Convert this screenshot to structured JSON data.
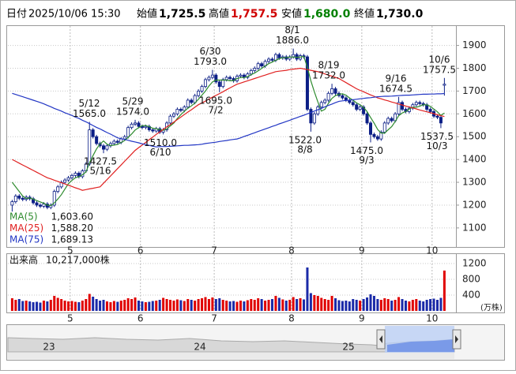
{
  "chart_data": {
    "type": "candlestick",
    "header": {
      "date_label": "日付",
      "date": "2025/10/06 15:30",
      "items": [
        {
          "name": "始値",
          "value": {
            "value": 1725.5,
            "label": "1,725.5"
          }
        },
        {
          "name": "高値",
          "value": {
            "value": 1757.5,
            "label": "1,757.5"
          }
        },
        {
          "name": "安値",
          "value": {
            "value": 1680,
            "label": "1,680.0"
          }
        },
        {
          "name": "終値",
          "value": {
            "value": 1730,
            "label": "1,730.0"
          }
        }
      ]
    },
    "categories": [
      null,
      null,
      null,
      null,
      null,
      null,
      null,
      null,
      null,
      null,
      null,
      null,
      null,
      null,
      null,
      null,
      null,
      "5",
      null,
      null,
      null,
      null,
      null,
      null,
      null,
      null,
      null,
      null,
      null,
      null,
      null,
      null,
      null,
      null,
      null,
      null,
      null,
      "6",
      null,
      null,
      null,
      null,
      null,
      null,
      null,
      null,
      null,
      null,
      null,
      null,
      null,
      null,
      null,
      null,
      null,
      null,
      null,
      null,
      "7",
      null,
      null,
      null,
      null,
      null,
      null,
      null,
      null,
      null,
      null,
      null,
      null,
      null,
      null,
      null,
      null,
      null,
      null,
      null,
      null,
      null,
      "8",
      null,
      null,
      null,
      null,
      null,
      null,
      null,
      null,
      null,
      null,
      null,
      null,
      null,
      null,
      null,
      null,
      null,
      null,
      null,
      "9",
      null,
      null,
      null,
      null,
      null,
      null,
      null,
      null,
      null,
      null,
      null,
      null,
      null,
      null,
      null,
      null,
      null,
      null,
      null,
      "10",
      null,
      null,
      null
    ],
    "open": [
      1200,
      1215,
      1240,
      1230,
      1225,
      1235,
      1228,
      1210,
      1200,
      1195,
      1205,
      1190,
      1200,
      1260,
      1280,
      1300,
      1310,
      1320,
      1330,
      1340,
      1325,
      1350,
      1380,
      1530,
      1500,
      1470,
      1460,
      1445,
      1460,
      1470,
      1480,
      1475,
      1490,
      1500,
      1540,
      1555,
      1560,
      1545,
      1540,
      1545,
      1530,
      1525,
      1535,
      1520,
      1530,
      1560,
      1590,
      1600,
      1620,
      1615,
      1630,
      1660,
      1650,
      1680,
      1700,
      1720,
      1750,
      1760,
      1770,
      1740,
      1720,
      1750,
      1760,
      1755,
      1745,
      1765,
      1770,
      1760,
      1775,
      1790,
      1800,
      1820,
      1810,
      1830,
      1840,
      1835,
      1860,
      1845,
      1850,
      1840,
      1850,
      1860,
      1840,
      1855,
      1850,
      1620,
      1560,
      1600,
      1630,
      1650,
      1660,
      1690,
      1710,
      1690,
      1680,
      1670,
      1660,
      1650,
      1640,
      1620,
      1630,
      1600,
      1560,
      1510,
      1500,
      1490,
      1520,
      1560,
      1580,
      1570,
      1600,
      1650,
      1620,
      1610,
      1625,
      1640,
      1650,
      1645,
      1640,
      1620,
      1610,
      1590,
      1585,
      1725.5
    ],
    "high": [
      1223,
      1248,
      1248,
      1238,
      1243,
      1243,
      1236,
      1218,
      1208,
      1213,
      1213,
      1208,
      1268,
      1288,
      1308,
      1318,
      1328,
      1338,
      1348,
      1348,
      1358,
      1388,
      1565,
      1538,
      1508,
      1478,
      1468,
      1468,
      1478,
      1488,
      1488,
      1498,
      1508,
      1548,
      1563,
      1574,
      1568,
      1553,
      1553,
      1553,
      1538,
      1543,
      1543,
      1538,
      1568,
      1598,
      1608,
      1628,
      1628,
      1638,
      1668,
      1668,
      1688,
      1708,
      1728,
      1758,
      1768,
      1793,
      1778,
      1748,
      1758,
      1768,
      1768,
      1763,
      1773,
      1778,
      1778,
      1783,
      1798,
      1808,
      1828,
      1828,
      1838,
      1848,
      1848,
      1868,
      1868,
      1858,
      1858,
      1858,
      1886,
      1868,
      1863,
      1863,
      1858,
      1628,
      1608,
      1638,
      1658,
      1668,
      1698,
      1732,
      1718,
      1698,
      1688,
      1678,
      1668,
      1658,
      1648,
      1638,
      1638,
      1608,
      1568,
      1518,
      1508,
      1528,
      1568,
      1588,
      1588,
      1608,
      1674.5,
      1658,
      1628,
      1633,
      1648,
      1658,
      1658,
      1653,
      1648,
      1628,
      1618,
      1598,
      1593,
      1757.5
    ],
    "low": [
      1170,
      1207,
      1222,
      1217,
      1217,
      1220,
      1202,
      1192,
      1187,
      1187,
      1182,
      1182,
      1192,
      1252,
      1272,
      1292,
      1302,
      1312,
      1322,
      1317,
      1317,
      1342,
      1372,
      1492,
      1462,
      1452,
      1427.5,
      1437,
      1452,
      1462,
      1467,
      1467,
      1482,
      1492,
      1532,
      1547,
      1537,
      1532,
      1532,
      1522,
      1517,
      1517,
      1512,
      1510,
      1522,
      1552,
      1582,
      1592,
      1607,
      1607,
      1622,
      1642,
      1642,
      1672,
      1692,
      1712,
      1742,
      1752,
      1732,
      1695,
      1712,
      1742,
      1747,
      1737,
      1737,
      1757,
      1752,
      1752,
      1767,
      1782,
      1792,
      1802,
      1802,
      1822,
      1827,
      1827,
      1837,
      1837,
      1832,
      1832,
      1842,
      1832,
      1832,
      1842,
      1612,
      1522,
      1552,
      1592,
      1622,
      1642,
      1652,
      1682,
      1682,
      1672,
      1662,
      1652,
      1642,
      1632,
      1612,
      1612,
      1592,
      1552,
      1475,
      1492,
      1482,
      1482,
      1512,
      1552,
      1562,
      1562,
      1592,
      1612,
      1602,
      1602,
      1617,
      1632,
      1637,
      1632,
      1612,
      1602,
      1582,
      1577,
      1537.5,
      1680
    ],
    "close": [
      1215,
      1240,
      1230,
      1225,
      1235,
      1228,
      1210,
      1200,
      1195,
      1205,
      1190,
      1200,
      1260,
      1280,
      1300,
      1310,
      1320,
      1330,
      1340,
      1325,
      1350,
      1380,
      1530,
      1500,
      1470,
      1460,
      1445,
      1460,
      1470,
      1480,
      1475,
      1490,
      1500,
      1540,
      1555,
      1560,
      1545,
      1540,
      1545,
      1530,
      1525,
      1535,
      1520,
      1530,
      1560,
      1590,
      1600,
      1620,
      1615,
      1630,
      1660,
      1650,
      1680,
      1700,
      1720,
      1750,
      1760,
      1770,
      1740,
      1720,
      1750,
      1760,
      1755,
      1745,
      1765,
      1770,
      1760,
      1775,
      1790,
      1800,
      1820,
      1810,
      1830,
      1840,
      1835,
      1860,
      1845,
      1850,
      1840,
      1850,
      1860,
      1840,
      1855,
      1850,
      1620,
      1560,
      1600,
      1630,
      1650,
      1660,
      1690,
      1710,
      1690,
      1680,
      1670,
      1660,
      1650,
      1640,
      1620,
      1630,
      1600,
      1560,
      1510,
      1500,
      1490,
      1520,
      1560,
      1580,
      1570,
      1600,
      1650,
      1620,
      1610,
      1625,
      1640,
      1650,
      1645,
      1640,
      1620,
      1610,
      1590,
      1585,
      1560,
      1730
    ],
    "up_color": "#ffffff",
    "down_color": "#0c1f86",
    "candle_outline": "#0c1f86",
    "ylim": [
      1020,
      1985
    ],
    "yticks": [
      1100,
      1200,
      1300,
      1400,
      1500,
      1600,
      1700,
      1800,
      1900
    ],
    "grid": true,
    "ma": [
      {
        "name": "MA(5)",
        "color": "#2e8b2e",
        "last": {
          "value": 1603.6,
          "label": "1,603.60"
        },
        "values": [
          1300,
          1280,
          1260,
          1240,
          1229,
          1232,
          1226,
          1220,
          1214,
          1208,
          1200,
          1198,
          1210,
          1227,
          1246,
          1270,
          1294,
          1308,
          1320,
          1325,
          1333,
          1345,
          1385,
          1417,
          1446,
          1468,
          1481,
          1467,
          1461,
          1463,
          1466,
          1475,
          1483,
          1497,
          1512,
          1529,
          1540,
          1548,
          1549,
          1544,
          1537,
          1535,
          1531,
          1528,
          1534,
          1547,
          1560,
          1580,
          1597,
          1611,
          1625,
          1635,
          1647,
          1664,
          1682,
          1700,
          1722,
          1740,
          1748,
          1748,
          1748,
          1748,
          1745,
          1746,
          1755,
          1759,
          1759,
          1763,
          1772,
          1779,
          1789,
          1799,
          1810,
          1820,
          1827,
          1835,
          1842,
          1846,
          1846,
          1849,
          1849,
          1848,
          1849,
          1851,
          1805,
          1745,
          1697,
          1652,
          1612,
          1620,
          1646,
          1668,
          1680,
          1686,
          1688,
          1682,
          1670,
          1660,
          1648,
          1640,
          1628,
          1610,
          1584,
          1560,
          1532,
          1516,
          1516,
          1530,
          1544,
          1566,
          1592,
          1604,
          1610,
          1621,
          1629,
          1629,
          1634,
          1640,
          1639,
          1633,
          1621,
          1609,
          1593,
          1603.6
        ]
      },
      {
        "name": "MA(25)",
        "color": "#e02020",
        "last": {
          "value": 1588.2,
          "label": "1,588.20"
        },
        "values": [
          1400,
          1392,
          1384,
          1376,
          1368,
          1360,
          1352,
          1344,
          1336,
          1328,
          1320,
          1315,
          1309,
          1304,
          1298,
          1293,
          1287,
          1282,
          1276,
          1271,
          1265,
          1268,
          1271,
          1274,
          1277,
          1280,
          1296,
          1312,
          1328,
          1344,
          1360,
          1376,
          1392,
          1408,
          1424,
          1440,
          1452,
          1463,
          1475,
          1487,
          1498,
          1510,
          1521,
          1532,
          1543,
          1553,
          1564,
          1575,
          1586,
          1597,
          1608,
          1618,
          1629,
          1640,
          1648,
          1656,
          1665,
          1673,
          1681,
          1689,
          1697,
          1706,
          1714,
          1722,
          1730,
          1735,
          1740,
          1745,
          1750,
          1755,
          1760,
          1765,
          1770,
          1775,
          1780,
          1785,
          1787,
          1789,
          1791,
          1794,
          1796,
          1798,
          1800,
          1797,
          1794,
          1791,
          1788,
          1785,
          1780,
          1775,
          1770,
          1765,
          1760,
          1755,
          1746,
          1737,
          1728,
          1719,
          1710,
          1703,
          1697,
          1690,
          1683,
          1677,
          1670,
          1666,
          1661,
          1657,
          1652,
          1648,
          1643,
          1639,
          1634,
          1630,
          1626,
          1622,
          1617,
          1613,
          1609,
          1605,
          1601,
          1596,
          1592,
          1588.2
        ]
      },
      {
        "name": "MA(75)",
        "color": "#2236c4",
        "last": {
          "value": 1689.13,
          "label": "1,689.13"
        },
        "values": [
          1690,
          1685,
          1680,
          1675,
          1670,
          1665,
          1660,
          1655,
          1650,
          1644,
          1637,
          1631,
          1624,
          1618,
          1612,
          1605,
          1599,
          1593,
          1586,
          1580,
          1572,
          1565,
          1557,
          1549,
          1541,
          1534,
          1526,
          1518,
          1511,
          1503,
          1495,
          1491,
          1488,
          1484,
          1480,
          1477,
          1473,
          1469,
          1466,
          1462,
          1458,
          1455,
          1456,
          1457,
          1457,
          1458,
          1459,
          1460,
          1461,
          1462,
          1462,
          1463,
          1464,
          1465,
          1467,
          1470,
          1472,
          1474,
          1476,
          1479,
          1481,
          1483,
          1486,
          1488,
          1490,
          1495,
          1501,
          1506,
          1512,
          1517,
          1523,
          1528,
          1534,
          1539,
          1545,
          1550,
          1556,
          1561,
          1567,
          1572,
          1578,
          1583,
          1589,
          1594,
          1600,
          1606,
          1612,
          1618,
          1624,
          1631,
          1637,
          1643,
          1649,
          1655,
          1657,
          1659,
          1660,
          1662,
          1664,
          1666,
          1668,
          1670,
          1671,
          1673,
          1675,
          1676,
          1677,
          1677,
          1678,
          1679,
          1680,
          1681,
          1682,
          1682,
          1683,
          1684,
          1685,
          1686,
          1686,
          1687,
          1687,
          1688,
          1688,
          1689.13
        ]
      }
    ],
    "annotations": [
      {
        "date": "5/12",
        "value": {
          "value": 1565,
          "label": "1565.0"
        }
      },
      {
        "date": "5/16",
        "value": {
          "value": 1427.5,
          "label": "1427.5"
        }
      },
      {
        "date": "5/29",
        "value": {
          "value": 1574,
          "label": "1574.0"
        }
      },
      {
        "date": "6/10",
        "value": {
          "value": 1510,
          "label": "1510.0"
        }
      },
      {
        "date": "6/30",
        "value": {
          "value": 1793,
          "label": "1793.0"
        }
      },
      {
        "date": "7/2",
        "value": {
          "value": 1695,
          "label": "1695.0"
        }
      },
      {
        "date": "8/1",
        "value": {
          "value": 1886,
          "label": "1886.0"
        }
      },
      {
        "date": "8/8",
        "value": {
          "value": 1522,
          "label": "1522.0"
        }
      },
      {
        "date": "8/19",
        "value": {
          "value": 1732,
          "label": "1732.0"
        }
      },
      {
        "date": "9/3",
        "value": {
          "value": 1475,
          "label": "1475.0"
        }
      },
      {
        "date": "9/16",
        "value": {
          "value": 1674.5,
          "label": "1674.5"
        }
      },
      {
        "date": "10/3",
        "value": {
          "value": 1537.5,
          "label": "1537.5"
        }
      },
      {
        "date": "10/6",
        "value": {
          "value": 1757.5,
          "label": "1757.5"
        }
      }
    ],
    "volume": {
      "title": "出来高",
      "latest": {
        "value": 1021.7,
        "label": "10,217,000株"
      },
      "unit": "(万株)",
      "up_color": "#e00000",
      "down_color": "#1a2aa8",
      "ylim": [
        0,
        1440
      ],
      "yticks": [
        400,
        800,
        1200
      ],
      "values": [
        320,
        280,
        300,
        250,
        260,
        240,
        220,
        230,
        210,
        260,
        240,
        280,
        380,
        330,
        300,
        260,
        240,
        250,
        230,
        220,
        260,
        300,
        430,
        360,
        300,
        260,
        280,
        240,
        220,
        250,
        230,
        260,
        280,
        320,
        300,
        340,
        260,
        240,
        220,
        230,
        250,
        260,
        280,
        330,
        300,
        280,
        260,
        290,
        270,
        250,
        300,
        280,
        260,
        300,
        320,
        350,
        300,
        340,
        300,
        320,
        280,
        260,
        240,
        250,
        230,
        260,
        240,
        270,
        300,
        280,
        320,
        300,
        260,
        280,
        300,
        380,
        330,
        290,
        260,
        280,
        350,
        300,
        320,
        290,
        1100,
        450,
        400,
        380,
        330,
        300,
        280,
        380,
        320,
        270,
        250,
        260,
        240,
        300,
        280,
        260,
        300,
        340,
        420,
        380,
        300,
        280,
        320,
        300,
        260,
        280,
        350,
        300,
        260,
        240,
        280,
        300,
        260,
        240,
        280,
        300,
        310,
        280,
        330,
        1021.7
      ]
    },
    "navigator": {
      "labels": [
        "23",
        "24",
        "25"
      ]
    }
  }
}
